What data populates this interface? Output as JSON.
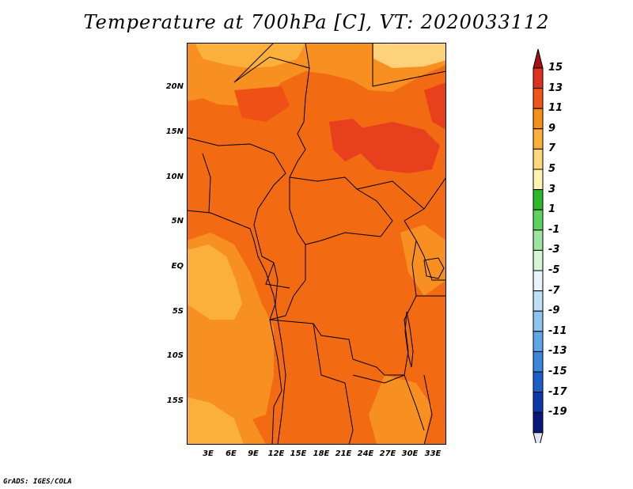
{
  "title": "Temperature at 700hPa [C], VT: 2020033112",
  "credit": "GrADS: IGES/COLA",
  "map": {
    "lat_labels": [
      "20N",
      "15N",
      "10N",
      "5N",
      "EQ",
      "5S",
      "10S",
      "15S"
    ],
    "lon_labels": [
      "3E",
      "6E",
      "9E",
      "12E",
      "15E",
      "18E",
      "21E",
      "24E",
      "27E",
      "30E",
      "33E"
    ]
  },
  "colorbar": {
    "labels": [
      "15",
      "13",
      "11",
      "9",
      "7",
      "5",
      "3",
      "1",
      "-1",
      "-3",
      "-5",
      "-7",
      "-9",
      "-11",
      "-13",
      "-15",
      "-17",
      "-19"
    ],
    "colors": [
      "#a50f15",
      "#e0301e",
      "#f0561b",
      "#f88f1a",
      "#fbb03b",
      "#fdd779",
      "#fff3b0",
      "#2eb82e",
      "#5fd35f",
      "#9fe59f",
      "#d5f5d5",
      "#e8f4fb",
      "#bfdff7",
      "#8fc4f0",
      "#5ea8e8",
      "#3a87dc",
      "#1c5fc9",
      "#0d3aa8",
      "#06187a",
      "#e3e3f7"
    ]
  }
}
